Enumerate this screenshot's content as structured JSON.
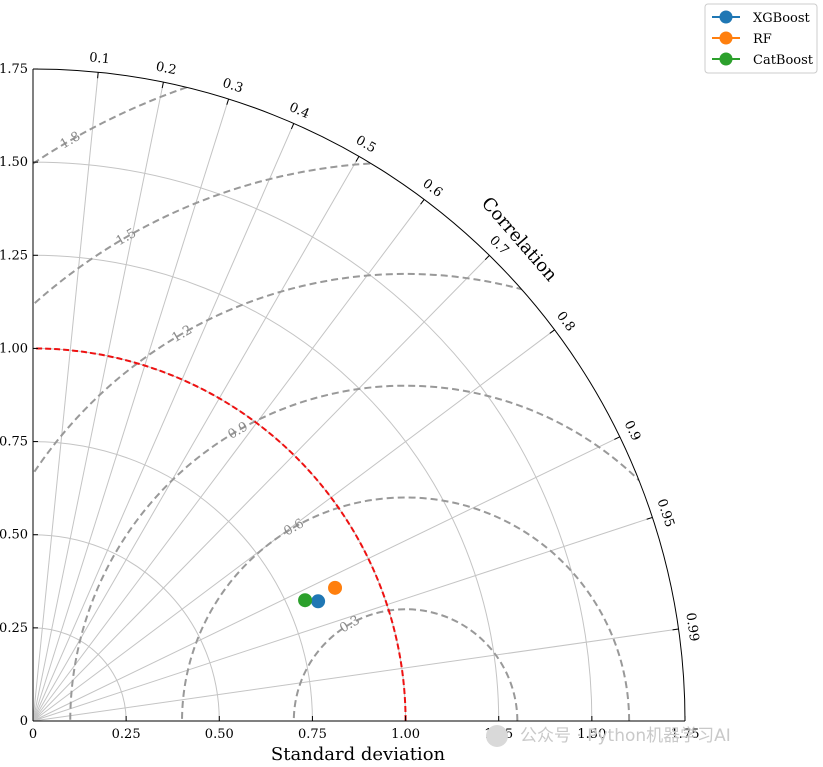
{
  "chart_data": {
    "type": "scatter",
    "subtype": "taylor-diagram",
    "xlabel": "Standard deviation",
    "angle_label": "Correlation",
    "std_range": [
      0,
      1.75
    ],
    "std_ticks": [
      "0",
      "0.25",
      "0.50",
      "0.75",
      "1.00",
      "1.25",
      "1.50",
      "1.75"
    ],
    "correlation_ticks": [
      "0.1",
      "0.2",
      "0.3",
      "0.4",
      "0.5",
      "0.6",
      "0.7",
      "0.8",
      "0.9",
      "0.95",
      "0.99"
    ],
    "reference_std": 1.0,
    "rmsd_contours": [
      {
        "value": 0.3,
        "label": "0.3"
      },
      {
        "value": 0.6,
        "label": "0.6"
      },
      {
        "value": 0.9,
        "label": "0.9"
      },
      {
        "value": 1.2,
        "label": "1.2"
      },
      {
        "value": 1.5,
        "label": "1.5"
      },
      {
        "value": 1.8,
        "label": "1.8"
      }
    ],
    "grid": true,
    "legend_position": "top-right",
    "series": [
      {
        "name": "XGBoost",
        "std": 0.83,
        "correlation": 0.922,
        "color": "#1f77b4"
      },
      {
        "name": "RF",
        "std": 0.886,
        "correlation": 0.915,
        "color": "#ff7f0e"
      },
      {
        "name": "CatBoost",
        "std": 0.799,
        "correlation": 0.914,
        "color": "#2ca02c"
      }
    ],
    "colors": {
      "reference": "#ee1111",
      "rmsd": "#999999",
      "grid": "#c4c4c4"
    }
  },
  "watermark": "公众号 · Python机器学习AI"
}
